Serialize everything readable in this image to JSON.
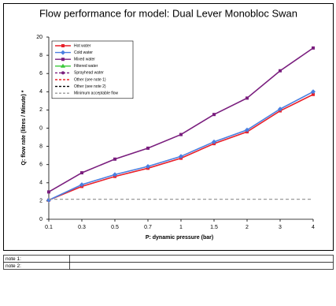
{
  "chart_data": {
    "type": "line",
    "title": "Flow performance for model: Dual Lever Monobloc Swan",
    "x_label": "P: dynamic pressure (bar)",
    "y_label": "Q: flow rate (litres / Minute) *",
    "categories": [
      "0.1",
      "0.3",
      "0.5",
      "0.7",
      "1",
      "1.5",
      "2",
      "3",
      "4"
    ],
    "ylim": [
      0,
      20
    ],
    "yticks": [
      0,
      2,
      4,
      6,
      8,
      {
        "value": 10,
        "label": "0"
      },
      {
        "value": 12,
        "label": "2"
      },
      {
        "value": 14,
        "label": "4"
      },
      {
        "value": 16,
        "label": "6"
      },
      {
        "value": 18,
        "label": "8"
      },
      20
    ],
    "grid": false,
    "legend": "top-left",
    "series": [
      {
        "name": "Hot water",
        "color": "#e8202a",
        "marker": "square",
        "dash": false,
        "values": [
          2.1,
          3.6,
          4.7,
          5.6,
          6.7,
          8.3,
          9.6,
          11.9,
          13.7
        ]
      },
      {
        "name": "Cold water",
        "color": "#4a7fe0",
        "marker": "diamond",
        "dash": false,
        "values": [
          2.1,
          3.8,
          4.9,
          5.8,
          6.9,
          8.5,
          9.8,
          12.1,
          14.0
        ]
      },
      {
        "name": "Mixed water",
        "color": "#7a1e7e",
        "marker": "square",
        "dash": false,
        "values": [
          3.0,
          5.1,
          6.6,
          7.8,
          9.3,
          11.5,
          13.3,
          16.3,
          18.8
        ]
      },
      {
        "name": "Filtered water",
        "color": "#39c83a",
        "marker": "triangle",
        "dash": false,
        "values": [
          null,
          null,
          null,
          null,
          null,
          null,
          null,
          null,
          null
        ]
      },
      {
        "name": "Sprayhead water",
        "color": "#7a1e7e",
        "marker": "circle",
        "dash": true,
        "values": [
          null,
          null,
          null,
          null,
          null,
          null,
          null,
          null,
          null
        ]
      },
      {
        "name": "Other (see note 1)",
        "color": "#e8202a",
        "marker": "none",
        "dash": true,
        "values": [
          null,
          null,
          null,
          null,
          null,
          null,
          null,
          null,
          null
        ]
      },
      {
        "name": "Other (see note 2)",
        "color": "#000000",
        "marker": "none",
        "dash": true,
        "values": [
          null,
          null,
          null,
          null,
          null,
          null,
          null,
          null,
          null
        ]
      },
      {
        "name": "Minimum acceptable flow",
        "color": "#999999",
        "marker": "none",
        "dash": true,
        "values": [
          2.2,
          2.2,
          2.2,
          2.2,
          2.2,
          2.2,
          2.2,
          2.2,
          2.2
        ]
      }
    ]
  },
  "notes": [
    "note 1:",
    "note 2:"
  ]
}
